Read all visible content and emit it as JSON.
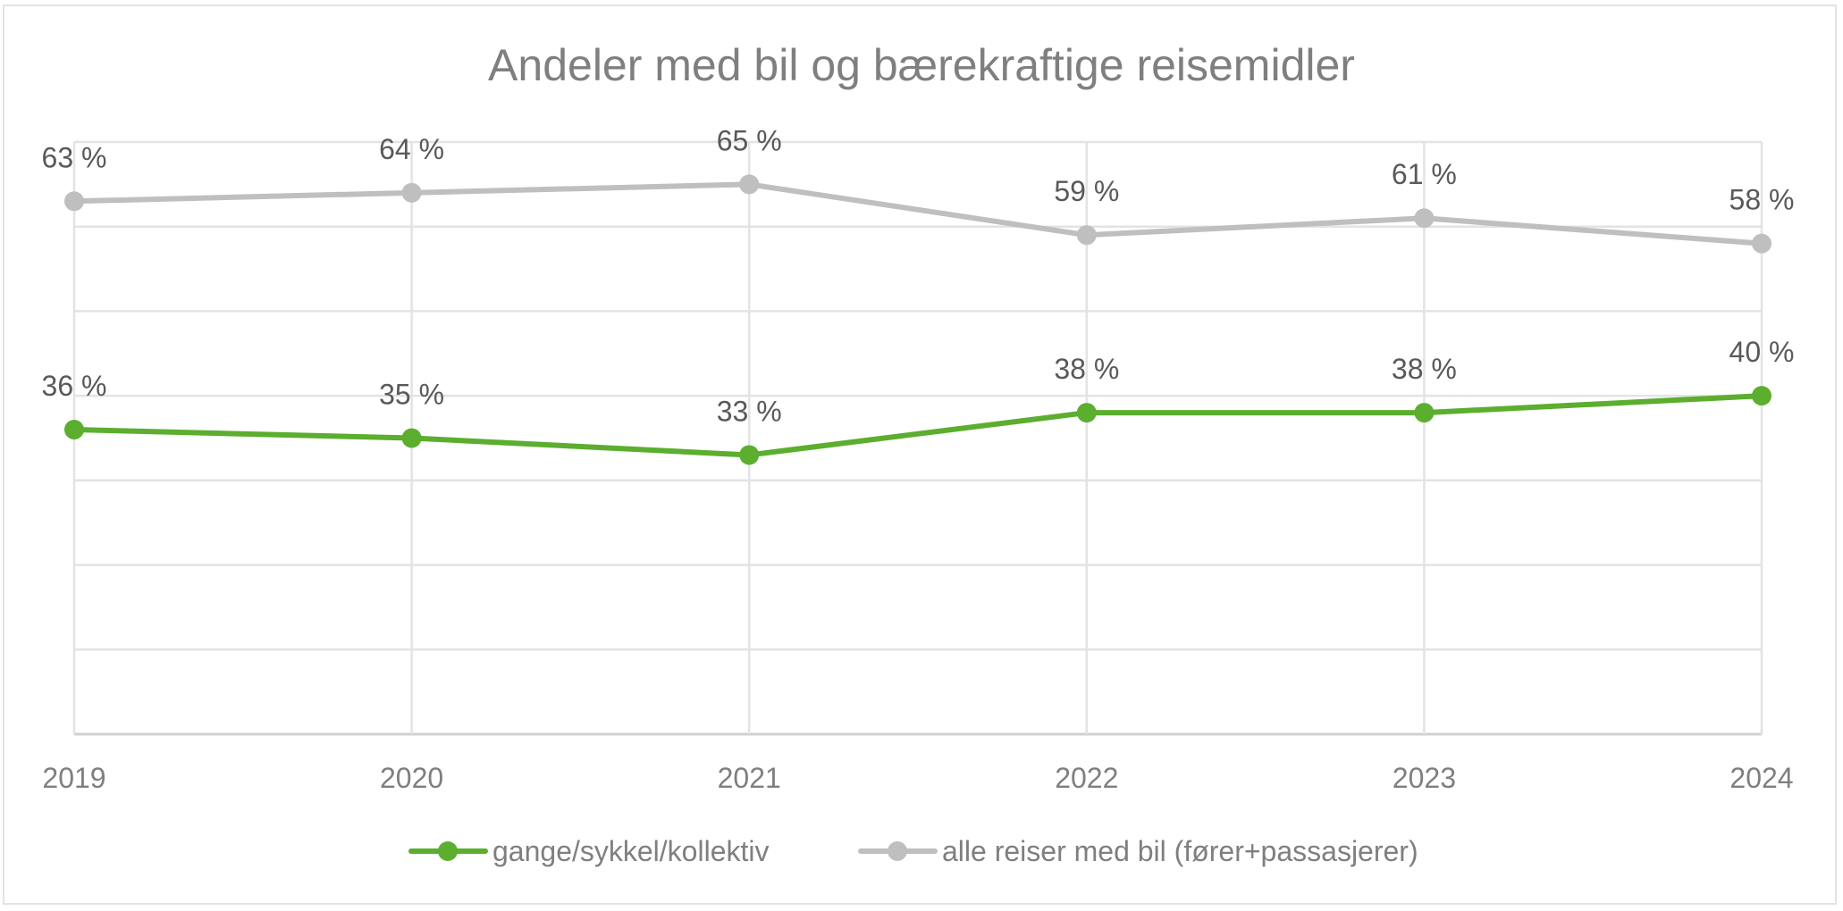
{
  "chart_data": {
    "type": "line",
    "title": "Andeler med bil og bærekraftige reisemidler",
    "xlabel": "",
    "ylabel": "",
    "categories": [
      "2019",
      "2020",
      "2021",
      "2022",
      "2023",
      "2024"
    ],
    "ylim": [
      0,
      70
    ],
    "y_gridlines": [
      0,
      10,
      20,
      30,
      40,
      50,
      60,
      70
    ],
    "y_tick_labels_visible": false,
    "grid": true,
    "legend_position": "bottom",
    "series": [
      {
        "name": "gange/sykkel/kollektiv",
        "color": "#5BAE2E",
        "values": [
          36,
          35,
          33,
          38,
          38,
          40
        ],
        "labels": [
          "36 %",
          "35 %",
          "33 %",
          "38 %",
          "38 %",
          "40 %"
        ]
      },
      {
        "name": "alle reiser med bil (fører+passasjerer)",
        "color": "#BFBFBF",
        "values": [
          63,
          64,
          65,
          59,
          61,
          58
        ],
        "labels": [
          "63 %",
          "64 %",
          "65 %",
          "59 %",
          "61 %",
          "58 %"
        ]
      }
    ]
  }
}
